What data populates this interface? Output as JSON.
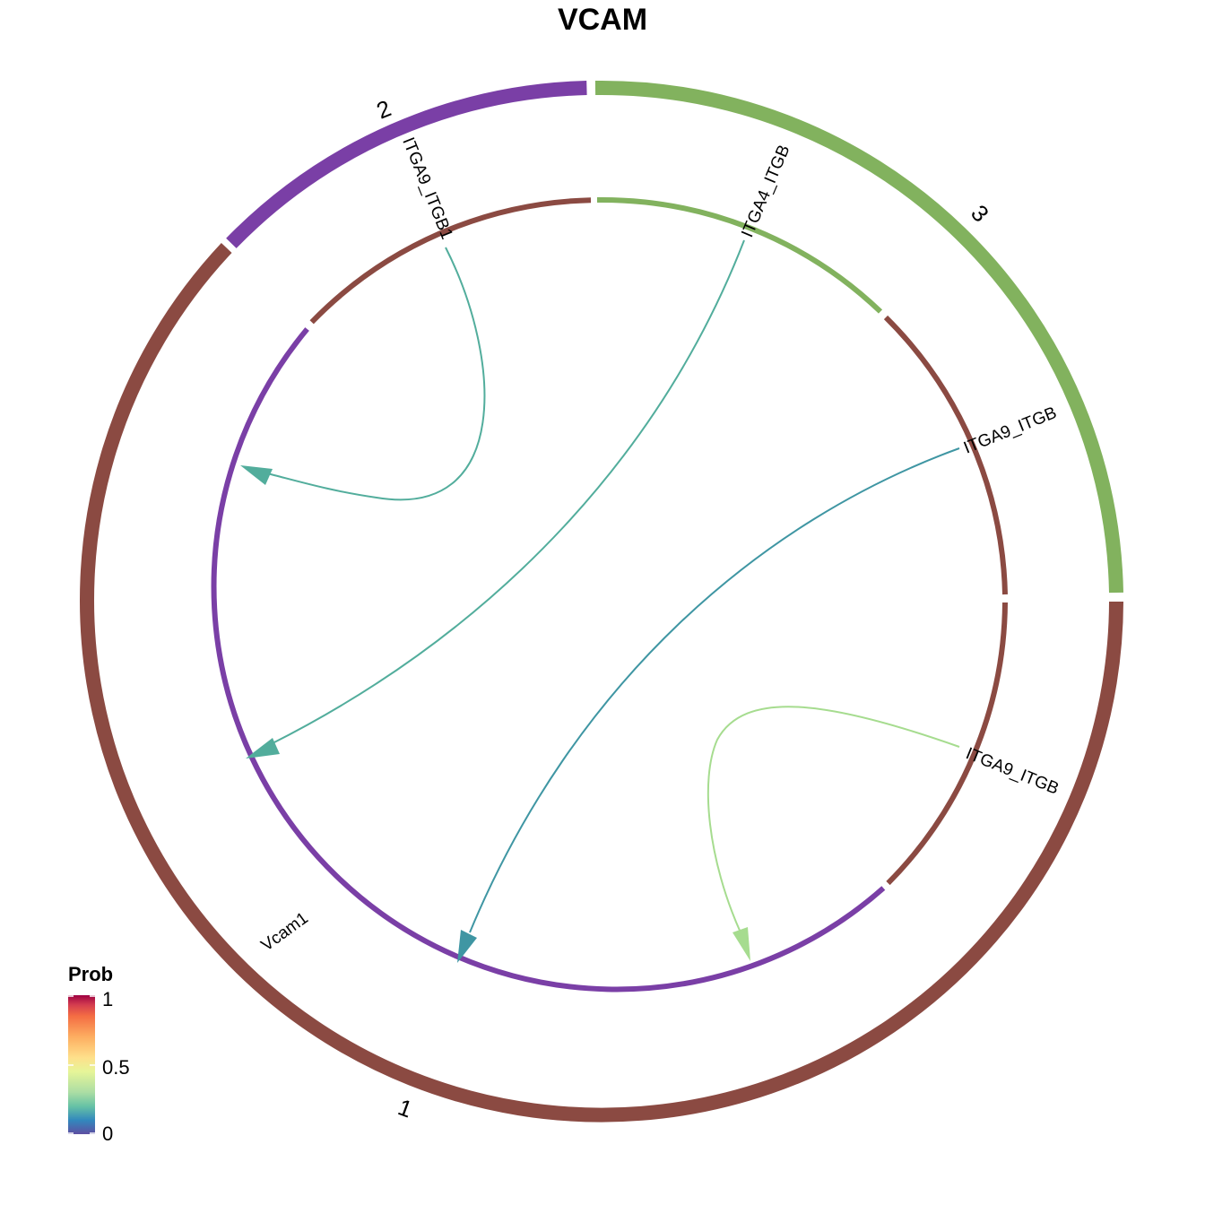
{
  "title": "VCAM",
  "colors": {
    "group1": "#8B4A42",
    "group2": "#7A3FA6",
    "group3": "#82B25E"
  },
  "groups": [
    {
      "label": "1",
      "color": "#8B4A42"
    },
    {
      "label": "2",
      "color": "#7A3FA6"
    },
    {
      "label": "3",
      "color": "#82B25E"
    }
  ],
  "gene_labels": {
    "vcam1": "Vcam1",
    "itga9_itgb1_group2": "ITGA9_ITGB1",
    "itga4_itgb1_group3": "ITGA4_ITGB",
    "itga9_itgb1_upper_right": "ITGA9_ITGB",
    "itga9_itgb1_lower_right": "ITGA9_ITGB"
  },
  "links": [
    {
      "source": "ITGA9_ITGB1",
      "target": "Vcam1",
      "prob": 0.35,
      "color": "#52AD9C"
    },
    {
      "source": "ITGA4_ITGB",
      "target": "Vcam1",
      "prob": 0.35,
      "color": "#52AD9C"
    },
    {
      "source": "ITGA9_ITGB",
      "target": "Vcam1",
      "prob": 0.25,
      "color": "#3F96A3"
    },
    {
      "source": "ITGA9_ITGB",
      "target": "Vcam1",
      "prob": 0.45,
      "color": "#A6DC8F"
    }
  ],
  "legend": {
    "title": "Prob",
    "ticks": [
      "1",
      "0.5",
      "0"
    ]
  }
}
